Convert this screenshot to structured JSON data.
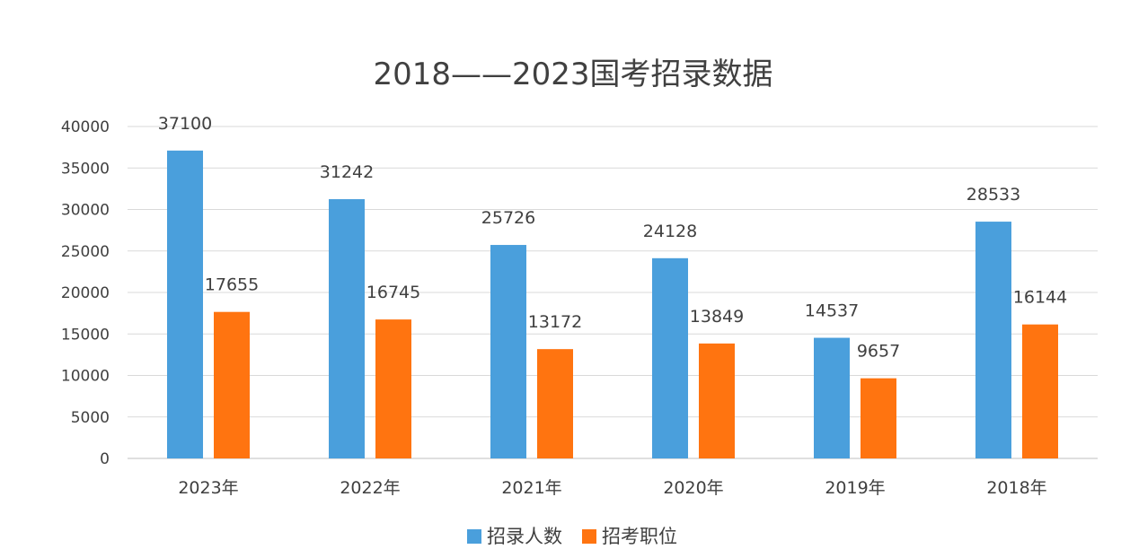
{
  "chart_data": {
    "type": "bar",
    "title": "2018——2023国考招录数据",
    "categories": [
      "2023年",
      "2022年",
      "2021年",
      "2020年",
      "2019年",
      "2018年"
    ],
    "series": [
      {
        "name": "招录人数",
        "color": "#4a9fdc",
        "values": [
          37100,
          31242,
          25726,
          24128,
          14537,
          28533
        ]
      },
      {
        "name": "招考职位",
        "color": "#ff7410",
        "values": [
          17655,
          16745,
          13172,
          13849,
          9657,
          16144
        ]
      }
    ],
    "ylim": [
      0,
      40000
    ],
    "yticks": [
      0,
      5000,
      10000,
      15000,
      20000,
      25000,
      30000,
      35000,
      40000
    ],
    "xlabel": "",
    "ylabel": "",
    "grid": true,
    "legend_position": "bottom",
    "data_labels": true
  }
}
